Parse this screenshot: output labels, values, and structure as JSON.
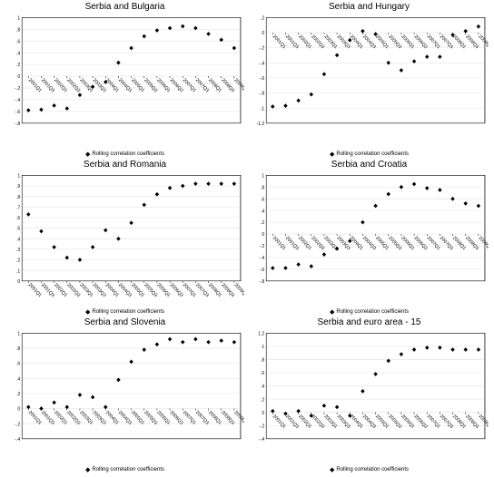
{
  "x_labels": [
    "2001Q1",
    "2001Q3",
    "2002Q1",
    "2002Q3",
    "2003Q1",
    "2003Q3",
    "2004Q1",
    "2004Q3",
    "2005Q1",
    "2005Q3",
    "2006Q1",
    "2006Q3",
    "2007Q1",
    "2007Q3",
    "2008Q1",
    "2008Q3",
    "2009Q1"
  ],
  "legend_label": "Rolling correlation coefficients",
  "marker_color": "#000000",
  "grid_color": "#e0e0e0",
  "axis_color": "#000000",
  "background_color": "#ffffff",
  "tick_fontsize": 5,
  "title_fontsize": 10,
  "legend_fontsize": 6,
  "charts": [
    {
      "title": "Serbia and Bulgaria",
      "ylim": [
        -0.8,
        1.0
      ],
      "ytick_step": 0.2,
      "values": [
        -0.58,
        -0.57,
        -0.5,
        -0.55,
        -0.32,
        -0.18,
        -0.1,
        0.23,
        0.48,
        0.68,
        0.78,
        0.82,
        0.85,
        0.82,
        0.72,
        0.62,
        0.48
      ]
    },
    {
      "title": "Serbia and Hungary",
      "ylim": [
        -1.2,
        0.2
      ],
      "ytick_step": 0.2,
      "values": [
        -0.98,
        -0.97,
        -0.9,
        -0.82,
        -0.55,
        -0.3,
        -0.1,
        0.02,
        -0.02,
        -0.4,
        -0.5,
        -0.38,
        -0.32,
        -0.32,
        -0.03,
        0.02,
        0.08
      ]
    },
    {
      "title": "Serbia and Romania",
      "ylim": [
        0.0,
        1.0
      ],
      "ytick_step": 0.1,
      "values": [
        0.63,
        0.47,
        0.32,
        0.22,
        0.2,
        0.32,
        0.48,
        0.4,
        0.55,
        0.72,
        0.82,
        0.88,
        0.9,
        0.92,
        0.92,
        0.92,
        0.92
      ]
    },
    {
      "title": "Serbia and Croatia",
      "ylim": [
        -0.8,
        1.0
      ],
      "ytick_step": 0.2,
      "values": [
        -0.58,
        -0.58,
        -0.52,
        -0.55,
        -0.35,
        -0.25,
        -0.12,
        0.2,
        0.48,
        0.68,
        0.8,
        0.85,
        0.78,
        0.75,
        0.6,
        0.52,
        0.48
      ]
    },
    {
      "title": "Serbia and Slovenia",
      "ylim": [
        -0.4,
        1.0
      ],
      "ytick_step": 0.2,
      "values": [
        0.02,
        0.0,
        0.08,
        0.02,
        0.18,
        0.15,
        0.02,
        0.38,
        0.62,
        0.78,
        0.85,
        0.92,
        0.88,
        0.92,
        0.88,
        0.9,
        0.88
      ]
    },
    {
      "title": "Serbia and euro area - 15",
      "ylim": [
        -0.4,
        1.2
      ],
      "ytick_step": 0.2,
      "values": [
        0.02,
        -0.02,
        0.02,
        -0.05,
        0.1,
        0.08,
        -0.05,
        0.32,
        0.58,
        0.78,
        0.88,
        0.95,
        0.98,
        0.98,
        0.95,
        0.95,
        0.95
      ]
    }
  ]
}
